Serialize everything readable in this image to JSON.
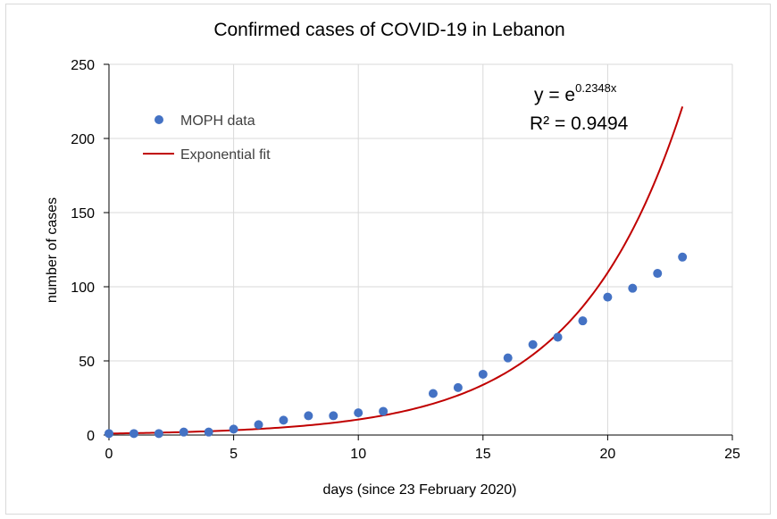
{
  "chart_data": {
    "type": "scatter",
    "title": "Confirmed cases of COVID-19 in Lebanon",
    "xlabel": "days (since 23 February 2020)",
    "ylabel": "number of cases",
    "xlim": [
      0,
      25
    ],
    "ylim": [
      0,
      250
    ],
    "xticks": [
      "0",
      "5",
      "10",
      "15",
      "20",
      "25"
    ],
    "yticks": [
      "0",
      "50",
      "100",
      "150",
      "200",
      "250"
    ],
    "grid": true,
    "legend_position": "top-left",
    "series": [
      {
        "name": "MOPH data",
        "kind": "scatter",
        "color": "#4472c4",
        "x": [
          0,
          1,
          2,
          3,
          4,
          5,
          6,
          7,
          8,
          9,
          10,
          11,
          13,
          14,
          15,
          16,
          17,
          18,
          19,
          20,
          21,
          22,
          23
        ],
        "y": [
          1,
          1,
          1,
          2,
          2,
          4,
          7,
          10,
          13,
          13,
          15,
          16,
          28,
          32,
          41,
          52,
          61,
          66,
          77,
          93,
          99,
          109,
          120
        ]
      },
      {
        "name": "Exponential fit",
        "kind": "line",
        "color": "#c00000",
        "formula": "exp(0.2348*x)",
        "coefficient": 0.2348,
        "x_range": [
          0,
          23
        ]
      }
    ],
    "annotation": {
      "equation_base": "y = e",
      "equation_exponent": "0.2348x",
      "r_squared": "R² = 0.9494"
    }
  }
}
